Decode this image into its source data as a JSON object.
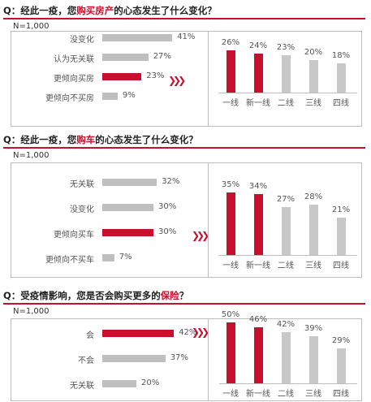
{
  "sections": [
    {
      "question": {
        "prefix": "Q：经此一疫，您",
        "highlight": "购买房产",
        "suffix": "的心态发生了什么变化？"
      },
      "n_label": "N=1,000",
      "left_chart": {
        "type": "bar",
        "orientation": "horizontal",
        "rows": [
          {
            "label": "没变化",
            "value": 41,
            "value_label": "41%"
          },
          {
            "label": "认为无关联",
            "value": 27,
            "value_label": "27%"
          },
          {
            "label": "更倾向买房",
            "value": 23,
            "value_label": "23%",
            "highlight": true
          },
          {
            "label": "更倾向不买房",
            "value": 9,
            "value_label": "9%"
          }
        ]
      },
      "arrow": "❯❯❯",
      "right_chart": {
        "type": "bar",
        "columns": [
          {
            "label": "一线",
            "value": 26,
            "value_label": "26%",
            "highlight": true
          },
          {
            "label": "新一线",
            "value": 24,
            "value_label": "24%",
            "highlight": true
          },
          {
            "label": "二线",
            "value": 23,
            "value_label": "23%"
          },
          {
            "label": "三线",
            "value": 20,
            "value_label": "20%"
          },
          {
            "label": "四线",
            "value": 18,
            "value_label": "18%"
          }
        ]
      }
    },
    {
      "question": {
        "prefix": "Q：经此一疫，您",
        "highlight": "购车",
        "suffix": "的心态发生了什么变化？"
      },
      "n_label": "N=1,000",
      "left_chart": {
        "type": "bar",
        "orientation": "horizontal",
        "rows": [
          {
            "label": "无关联",
            "value": 32,
            "value_label": "32%"
          },
          {
            "label": "没变化",
            "value": 30,
            "value_label": "30%"
          },
          {
            "label": "更倾向买车",
            "value": 30,
            "value_label": "30%",
            "highlight": true
          },
          {
            "label": "更倾向不买车",
            "value": 7,
            "value_label": "7%"
          }
        ]
      },
      "arrow": "❯❯❯",
      "right_chart": {
        "type": "bar",
        "columns": [
          {
            "label": "一线",
            "value": 35,
            "value_label": "35%",
            "highlight": true
          },
          {
            "label": "新一线",
            "value": 34,
            "value_label": "34%",
            "highlight": true
          },
          {
            "label": "二线",
            "value": 27,
            "value_label": "27%"
          },
          {
            "label": "三线",
            "value": 28,
            "value_label": "28%"
          },
          {
            "label": "四线",
            "value": 21,
            "value_label": "21%"
          }
        ]
      }
    },
    {
      "question": {
        "prefix": "Q：受疫情影响，您是否会购买更多的",
        "highlight": "保险",
        "suffix": "？"
      },
      "n_label": "N=1,000",
      "left_chart": {
        "type": "bar",
        "orientation": "horizontal",
        "rows": [
          {
            "label": "会",
            "value": 42,
            "value_label": "42%",
            "highlight": true
          },
          {
            "label": "不会",
            "value": 37,
            "value_label": "37%"
          },
          {
            "label": "无关联",
            "value": 20,
            "value_label": "20%"
          }
        ]
      },
      "arrow": "❯❯❯",
      "right_chart": {
        "type": "bar",
        "columns": [
          {
            "label": "一线",
            "value": 50,
            "value_label": "50%",
            "highlight": true
          },
          {
            "label": "新一线",
            "value": 46,
            "value_label": "46%",
            "highlight": true
          },
          {
            "label": "二线",
            "value": 42,
            "value_label": "42%"
          },
          {
            "label": "三线",
            "value": 39,
            "value_label": "39%"
          },
          {
            "label": "四线",
            "value": 29,
            "value_label": "29%"
          }
        ]
      }
    }
  ],
  "colors": {
    "accent": "#c8102e",
    "bar_gray": "#bfbfbf",
    "col_gray": "#c8c8c8"
  }
}
